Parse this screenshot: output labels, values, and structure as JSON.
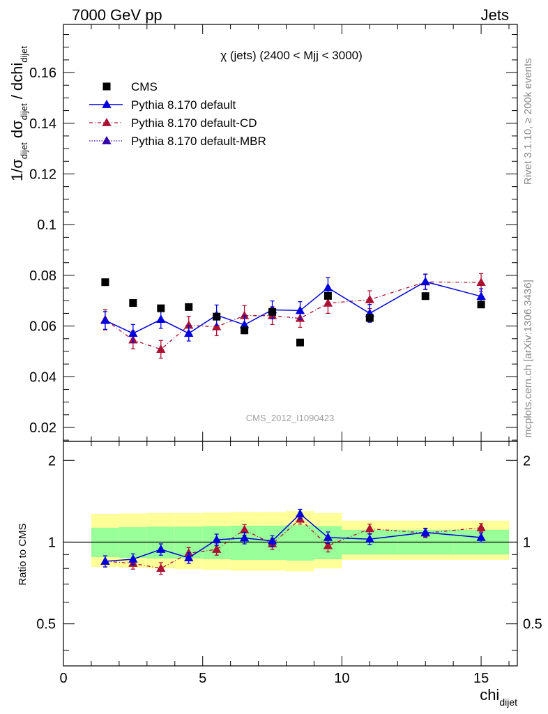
{
  "header": {
    "left": "7000 GeV pp",
    "right": "Jets"
  },
  "side_labels": {
    "top": "Rivet 3.1.10, ≥ 200k events",
    "bottom": "mcplots.cern.ch [arXiv:1306.3436]"
  },
  "main_plot": {
    "title": "χ (jets) (2400 < Mjj < 3000)",
    "watermark": "CMS_2012_I1090423",
    "ylabel": {
      "pre": "1/σ",
      "sub1": "dijet",
      "mid": " dσ",
      "sub2": "dijet",
      "post": " / dchi",
      "sub3": "dijet"
    },
    "yticks": [
      "0.02",
      "0.04",
      "0.06",
      "0.08",
      "0.1",
      "0.12",
      "0.14",
      "0.16"
    ]
  },
  "ratio_plot": {
    "ylabel": "Ratio to CMS",
    "yticks_left": [
      "0.5",
      "1",
      "2"
    ],
    "yticks_right": [
      "0.5",
      "1",
      "2"
    ]
  },
  "xaxis": {
    "label": "chi",
    "label_sub": "dijet",
    "ticks": [
      "0",
      "5",
      "10",
      "15"
    ]
  },
  "legend": {
    "position": "top-left",
    "entries": [
      {
        "label": "CMS",
        "color": "#000000"
      },
      {
        "label": "Pythia 8.170 default",
        "color": "#0000dd"
      },
      {
        "label": "Pythia 8.170 default-CD",
        "color": "#aa1133"
      },
      {
        "label": "Pythia 8.170 default-MBR",
        "color": "#3300aa"
      }
    ]
  },
  "chart_data": {
    "type": "scatter",
    "xlim": [
      0,
      16.3
    ],
    "ylim": [
      0.0145,
      0.179
    ],
    "ratio_ylim": [
      0.35,
      2.35
    ],
    "ratio_log_scale": true,
    "x": [
      1.5,
      2.5,
      3.5,
      4.5,
      5.5,
      6.5,
      7.5,
      8.5,
      9.5,
      11,
      13,
      15
    ],
    "bin_edges": [
      1,
      2,
      3,
      4,
      5,
      6,
      7,
      8,
      9,
      10,
      12,
      14,
      16
    ],
    "series": [
      {
        "name": "CMS",
        "color": "#000000",
        "values": [
          0.0773,
          0.0691,
          0.067,
          0.0675,
          0.0637,
          0.0583,
          0.0656,
          0.0535,
          0.0719,
          0.0632,
          0.0718,
          0.0685
        ]
      },
      {
        "name": "Pythia 8.170 default",
        "color": "#0000dd",
        "values": [
          0.0622,
          0.0571,
          0.0626,
          0.0571,
          0.0643,
          0.0605,
          0.0664,
          0.0661,
          0.0751,
          0.065,
          0.0775,
          0.0717
        ],
        "errors": [
          0.0035,
          0.0035,
          0.0035,
          0.003,
          0.004,
          0.0035,
          0.0035,
          0.0035,
          0.004,
          0.0035,
          0.003,
          0.003
        ],
        "ratio": [
          0.85,
          0.865,
          0.94,
          0.875,
          1.02,
          1.035,
          1.01,
          1.27,
          1.04,
          1.025,
          1.085,
          1.04
        ],
        "ratio_errors": [
          0.04,
          0.04,
          0.045,
          0.04,
          0.05,
          0.05,
          0.045,
          0.05,
          0.05,
          0.045,
          0.04,
          0.04
        ]
      },
      {
        "name": "Pythia 8.170 default-CD",
        "color": "#aa1133",
        "values": [
          0.0625,
          0.0545,
          0.0508,
          0.0603,
          0.0597,
          0.0641,
          0.0641,
          0.063,
          0.069,
          0.0704,
          0.0774,
          0.0772
        ],
        "errors": [
          0.004,
          0.0035,
          0.0035,
          0.0035,
          0.0035,
          0.004,
          0.0035,
          0.0035,
          0.004,
          0.0035,
          0.003,
          0.0035
        ],
        "ratio": [
          0.85,
          0.835,
          0.8,
          0.91,
          0.94,
          1.11,
          0.985,
          1.215,
          0.97,
          1.12,
          1.08,
          1.13
        ],
        "ratio_errors": [
          0.04,
          0.04,
          0.04,
          0.045,
          0.045,
          0.05,
          0.045,
          0.05,
          0.05,
          0.045,
          0.04,
          0.04
        ]
      },
      {
        "name": "Pythia 8.170 default-MBR",
        "color": "#3300aa",
        "values": []
      }
    ],
    "bands": {
      "inner_color": "#99ff99",
      "outer_color": "#ffff99",
      "inner": [
        [
          0.88,
          1.13
        ],
        [
          0.875,
          1.135
        ],
        [
          0.87,
          1.14
        ],
        [
          0.87,
          1.14
        ],
        [
          0.865,
          1.145
        ],
        [
          0.86,
          1.15
        ],
        [
          0.86,
          1.15
        ],
        [
          0.855,
          1.155
        ],
        [
          0.865,
          1.145
        ],
        [
          0.9,
          1.11
        ],
        [
          0.9,
          1.11
        ],
        [
          0.9,
          1.11
        ]
      ],
      "outer": [
        [
          0.81,
          1.27
        ],
        [
          0.805,
          1.275
        ],
        [
          0.8,
          1.28
        ],
        [
          0.795,
          1.28
        ],
        [
          0.79,
          1.285
        ],
        [
          0.785,
          1.29
        ],
        [
          0.785,
          1.29
        ],
        [
          0.78,
          1.3
        ],
        [
          0.8,
          1.28
        ],
        [
          0.86,
          1.2
        ],
        [
          0.86,
          1.2
        ],
        [
          0.86,
          1.2
        ]
      ]
    }
  }
}
